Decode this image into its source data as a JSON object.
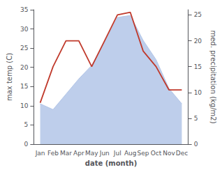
{
  "chart_data": {
    "type": "line",
    "xlabel": "date (month)",
    "ylabel": "max temp (C)",
    "y2label": "med. precipitation (kg/m2)",
    "categories": [
      "Jan",
      "Feb",
      "Mar",
      "Apr",
      "May",
      "Jun",
      "Jul",
      "Aug",
      "Sep",
      "Oct",
      "Nov",
      "Dec"
    ],
    "series": [
      {
        "type": "area",
        "color": "#b3c6e8",
        "values": [
          10.5,
          9.0,
          13.0,
          17.0,
          20.5,
          26.5,
          33.0,
          33.5,
          27.0,
          22.0,
          14.5,
          10.5
        ]
      },
      {
        "type": "line",
        "color": "#c0392b",
        "axis": "y2",
        "values": [
          8.0,
          15.0,
          20.0,
          20.0,
          15.0,
          20.0,
          25.0,
          25.5,
          18.0,
          15.0,
          10.5,
          10.5
        ]
      }
    ],
    "ylim": [
      0,
      35
    ],
    "yticks": [
      0,
      5,
      10,
      15,
      20,
      25,
      30,
      35
    ],
    "y2lim": [
      0,
      26.0
    ],
    "y2ticks": [
      0,
      5,
      10,
      15,
      20,
      25
    ],
    "grid": false
  }
}
